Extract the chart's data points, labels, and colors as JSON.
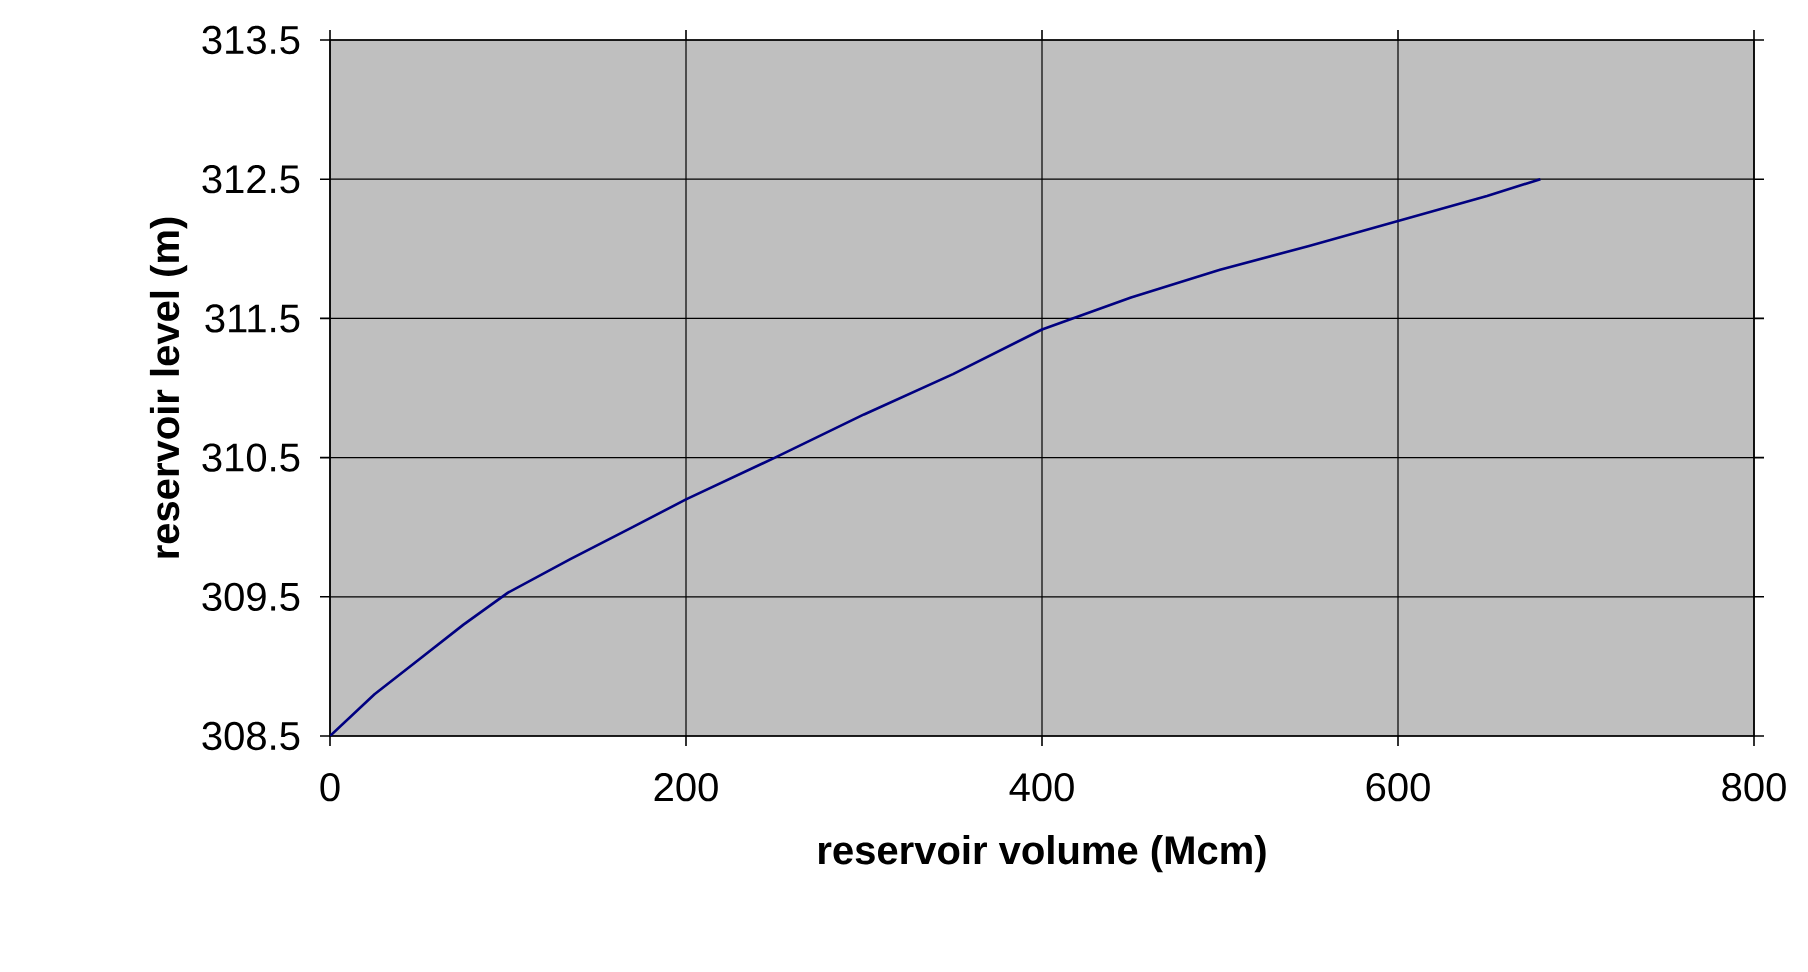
{
  "chart_data": {
    "type": "line",
    "xlabel": "reservoir volume (Mcm)",
    "ylabel": "reservoir level (m)",
    "x": [
      0,
      25,
      50,
      75,
      100,
      135,
      170,
      200,
      250,
      300,
      350,
      400,
      450,
      500,
      550,
      600,
      650,
      680
    ],
    "series": [
      {
        "color": "#000080",
        "values": [
          308.5,
          308.8,
          309.05,
          309.3,
          309.53,
          309.77,
          310.0,
          310.2,
          310.5,
          310.81,
          311.1,
          311.42,
          311.65,
          311.85,
          312.02,
          312.2,
          312.38,
          312.5
        ]
      }
    ],
    "xlim": [
      0,
      800
    ],
    "xticks": [
      0,
      200,
      400,
      600,
      800
    ],
    "ylim": [
      308.5,
      313.5
    ],
    "yticks": [
      {
        "value": 308.5,
        "label": "308.5"
      },
      {
        "value": 309.5,
        "label": "309.5"
      },
      {
        "value": 310.5,
        "label": "310.5"
      },
      {
        "value": 311.5,
        "label": "311.5"
      },
      {
        "value": 312.5,
        "label": "312.5"
      },
      {
        "value": 313.5,
        "label": "313.5"
      }
    ],
    "grid": true,
    "marker": "none",
    "line_style": "solid"
  }
}
